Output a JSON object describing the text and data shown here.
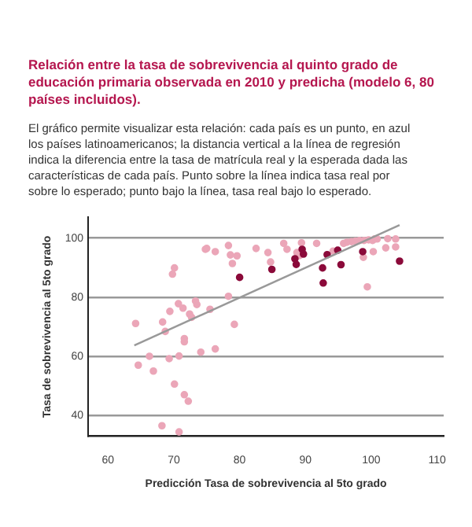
{
  "chart_data": {
    "type": "scatter",
    "title": "Relación entre la tasa de sobrevivencia al quinto grado de educación primaria observada en 2010 y predicha (modelo 6, 80 países incluidos).",
    "subtitle": "El gráfico permite visualizar esta relación: cada país es un punto, en azul los países latinoamericanos; la distancia vertical a la línea de regresión indica la diferencia entre la tasa de matrícula real y la esperada dada las características de cada país. Punto sobre la línea indica tasa real por sobre lo esperado; punto bajo la línea, tasa real bajo lo esperado.",
    "xlabel": "Predicción Tasa de sobrevivencia al 5to grado",
    "ylabel": "Tasa de sobrevivencia al 5to grado",
    "xlim": [
      57,
      111
    ],
    "xticks": [
      60,
      70,
      80,
      90,
      100,
      110
    ],
    "ylim": [
      33,
      107
    ],
    "yticks": [
      40,
      60,
      80,
      100
    ],
    "grid": "y",
    "legend": false,
    "marker": "circle",
    "series": [
      {
        "color": "#eba6b8",
        "x": [
          64.2,
          64.6,
          66.3,
          66.9,
          68.3,
          68.7,
          68.2,
          69.3,
          69.4,
          69.8,
          70.1,
          70.1,
          70.7,
          70.8,
          70.8,
          71.4,
          71.6,
          71.6,
          71.6,
          72.2,
          72.4,
          72.7,
          73.3,
          73.5,
          74.1,
          74.8,
          75,
          75.5,
          76.3,
          76.3,
          78.3,
          78.6,
          78.3,
          78.9,
          79.2,
          79.6,
          82.5,
          84.3,
          84.7,
          86.7,
          87.2,
          88.7,
          89.4,
          89.1,
          91.7,
          94.2,
          95.8,
          96.3,
          97,
          97.6,
          98.2,
          98.9,
          99.6,
          100.2,
          100.5,
          98.8,
          99.4,
          100.3,
          100.9,
          102.5,
          102.2,
          103.7,
          103.7
        ],
        "values": [
          71.1,
          57,
          60,
          55,
          71.6,
          68.4,
          36.5,
          59.2,
          75.2,
          87.8,
          89.9,
          50.6,
          77.8,
          60.1,
          34.4,
          76.3,
          66,
          64.9,
          47,
          44.8,
          74.3,
          73.2,
          78.7,
          77.5,
          61.4,
          96.2,
          96.5,
          75.9,
          95.4,
          62.5,
          97.5,
          94.3,
          80.3,
          91.4,
          70.8,
          94,
          96.5,
          95.1,
          91.9,
          98.2,
          96.2,
          95.1,
          98.4,
          94.1,
          98.2,
          95.6,
          98.2,
          98.6,
          98.8,
          99,
          99.2,
          99.2,
          99.4,
          99.2,
          99.7,
          93.5,
          83.5,
          95.4,
          99.7,
          99.8,
          96.7,
          99.7,
          97
        ]
      },
      {
        "color": "#8b0a3a",
        "x": [
          80,
          84.9,
          88.4,
          88.6,
          89.5,
          89.7,
          92.6,
          92.7,
          93.3,
          94.9,
          95.4,
          98.7,
          104.3
        ],
        "values": [
          86.7,
          89.4,
          93,
          91.1,
          96.2,
          94.6,
          89.9,
          84.8,
          94.4,
          95.9,
          91,
          95.4,
          92.2
        ]
      },
      {
        "type": "line",
        "color": "#999999",
        "marker": "none",
        "x": [
          64,
          104.3
        ],
        "values": [
          63.7,
          104.4
        ]
      }
    ]
  }
}
